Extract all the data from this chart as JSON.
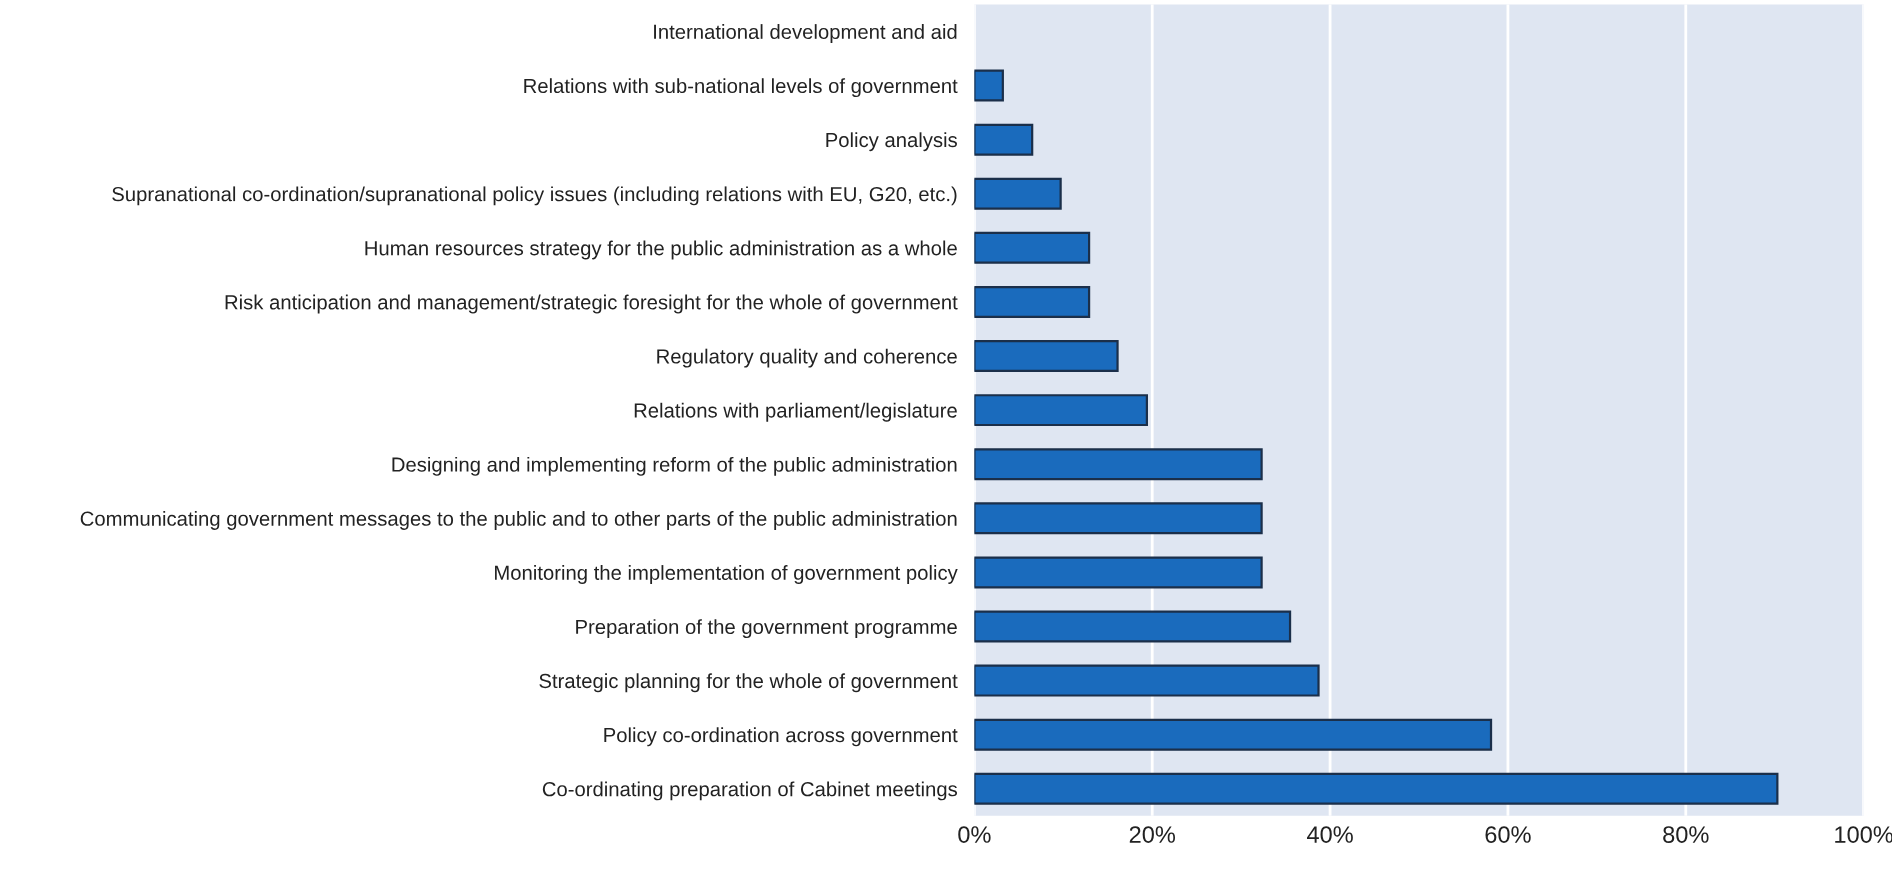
{
  "chart_data": {
    "type": "bar",
    "orientation": "horizontal",
    "categories": [
      "International development and aid",
      "Relations with sub-national levels of government",
      "Policy analysis",
      "Supranational co-ordination/supranational policy issues (including relations with EU, G20, etc.)",
      "Human resources strategy for the public administration as a whole",
      "Risk anticipation and management/strategic foresight for the whole of government",
      "Regulatory quality and coherence",
      "Relations with parliament/legislature",
      "Designing and implementing reform of the public administration",
      "Communicating government messages to the public and to other parts of the public administration",
      "Monitoring the implementation of government policy",
      "Preparation of the government programme",
      "Strategic planning for the whole of government",
      "Policy co-ordination across government",
      "Co-ordinating preparation of Cabinet meetings"
    ],
    "values": [
      0,
      3.2,
      6.5,
      9.7,
      12.9,
      12.9,
      16.1,
      19.4,
      32.3,
      32.3,
      32.3,
      35.5,
      38.7,
      58.1,
      90.3
    ],
    "color": "#1a6bbd",
    "xlim": [
      0,
      100
    ],
    "xticks": [
      {
        "value": 0,
        "label": "0%"
      },
      {
        "value": 20,
        "label": "20%"
      },
      {
        "value": 40,
        "label": "40%"
      },
      {
        "value": 60,
        "label": "60%"
      },
      {
        "value": 80,
        "label": "80%"
      },
      {
        "value": 100,
        "label": "100%"
      }
    ],
    "grid": "x"
  }
}
